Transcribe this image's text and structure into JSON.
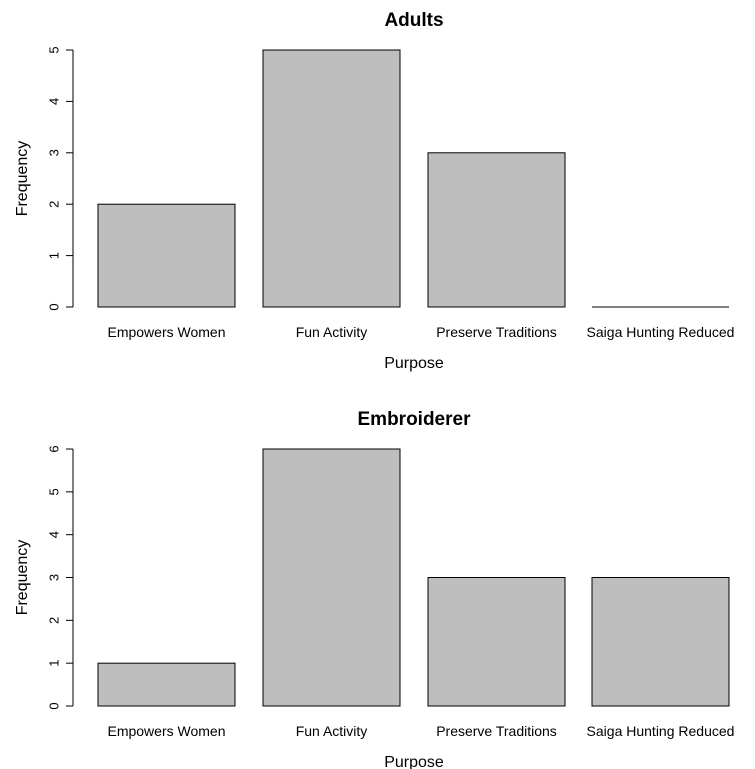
{
  "chart_data": [
    {
      "type": "bar",
      "title": "Adults",
      "xlabel": "Purpose",
      "ylabel": "Frequency",
      "categories": [
        "Empowers Women",
        "Fun Activity",
        "Preserve Traditions",
        "Saiga Hunting Reduced"
      ],
      "values": [
        2,
        5,
        3,
        0
      ],
      "ylim": [
        0,
        5
      ],
      "yticks": [
        "0",
        "1",
        "2",
        "3",
        "4",
        "5"
      ],
      "bar_color": "#bebebe",
      "grid": false
    },
    {
      "type": "bar",
      "title": "Embroiderer",
      "xlabel": "Purpose",
      "ylabel": "Frequency",
      "categories": [
        "Empowers Women",
        "Fun Activity",
        "Preserve Traditions",
        "Saiga Hunting Reduced"
      ],
      "values": [
        1,
        6,
        3,
        3
      ],
      "ylim": [
        0,
        6
      ],
      "yticks": [
        "0",
        "1",
        "2",
        "3",
        "4",
        "5",
        "6"
      ],
      "bar_color": "#bebebe",
      "grid": false
    }
  ]
}
